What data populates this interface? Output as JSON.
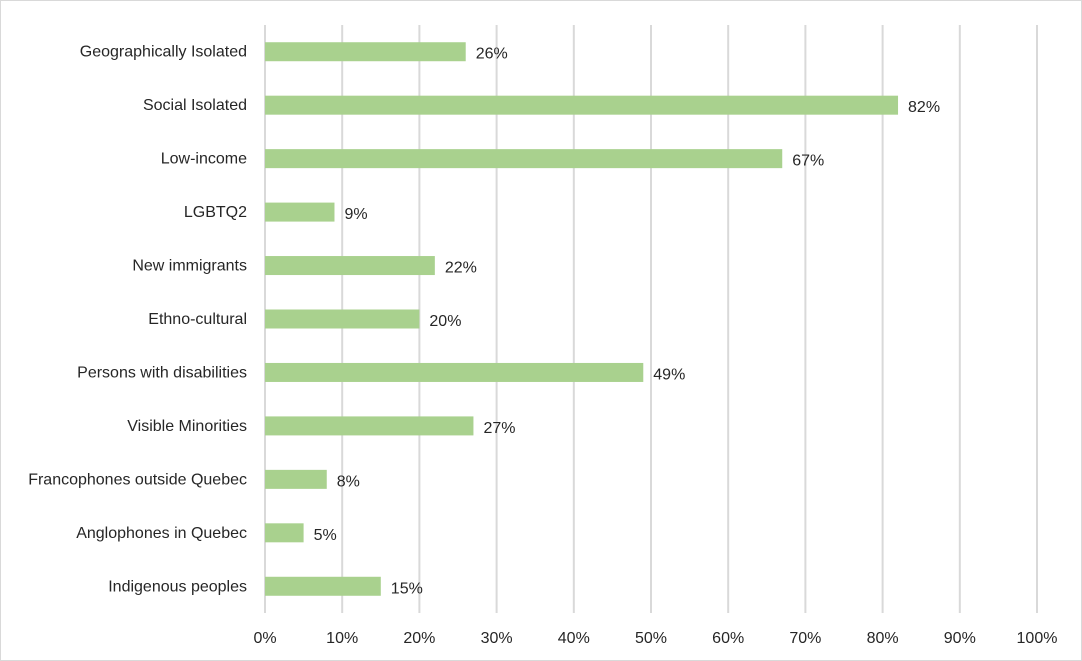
{
  "chart_data": {
    "type": "bar",
    "orientation": "horizontal",
    "categories": [
      "Geographically Isolated",
      "Social Isolated",
      "Low-income",
      "LGBTQ2",
      "New immigrants",
      "Ethno-cultural",
      "Persons with disabilities",
      "Visible Minorities",
      "Francophones outside Quebec",
      "Anglophones in Quebec",
      "Indigenous peoples"
    ],
    "values": [
      26,
      82,
      67,
      9,
      22,
      20,
      49,
      27,
      8,
      5,
      15
    ],
    "data_labels": [
      "26%",
      "82%",
      "67%",
      "9%",
      "22%",
      "20%",
      "49%",
      "27%",
      "8%",
      "5%",
      "15%"
    ],
    "x_ticks": [
      0,
      10,
      20,
      30,
      40,
      50,
      60,
      70,
      80,
      90,
      100
    ],
    "x_tick_labels": [
      "0%",
      "10%",
      "20%",
      "30%",
      "40%",
      "50%",
      "60%",
      "70%",
      "80%",
      "90%",
      "100%"
    ],
    "xlim": [
      0,
      100
    ],
    "grid": "vertical",
    "legend": "none",
    "title": "",
    "xlabel": "",
    "ylabel": "",
    "bar_color": "#a9d18e",
    "gridline_color": "#d9d9d9"
  }
}
